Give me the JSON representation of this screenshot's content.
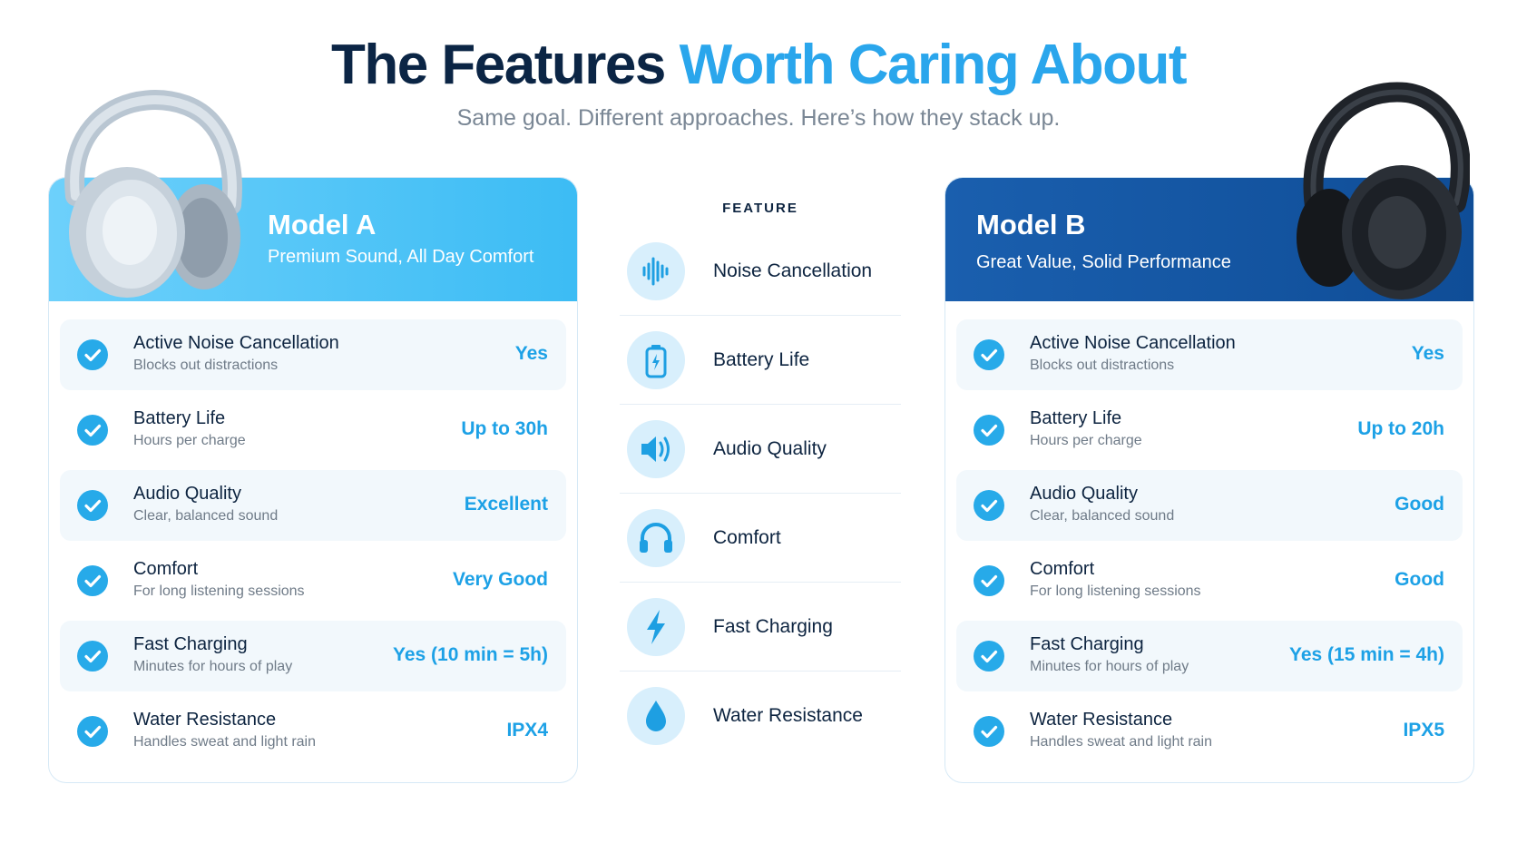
{
  "header": {
    "title_main": "The Features ",
    "title_accent": "Worth Caring About",
    "subtitle": "Same goal. Different approaches. Here’s how they stack up."
  },
  "colors": {
    "accent": "#2aa6ec",
    "model_a_header": "#4cc3f7",
    "model_b_header": "#135aa6",
    "value_text": "#1da1e6",
    "title_dark": "#0b2545"
  },
  "model_a": {
    "name": "Model A",
    "tagline": "Premium Sound, All Day Comfort",
    "rows": [
      {
        "title": "Active Noise Cancellation",
        "sub": "Blocks out distractions",
        "value": "Yes"
      },
      {
        "title": "Battery Life",
        "sub": "Hours per charge",
        "value": "Up to 30h"
      },
      {
        "title": "Audio Quality",
        "sub": "Clear, balanced sound",
        "value": "Excellent"
      },
      {
        "title": "Comfort",
        "sub": "For long listening sessions",
        "value": "Very Good"
      },
      {
        "title": "Fast Charging",
        "sub": "Minutes for hours of play",
        "value": "Yes (10 min = 5h)"
      },
      {
        "title": "Water Resistance",
        "sub": "Handles sweat and light rain",
        "value": "IPX4"
      }
    ]
  },
  "model_b": {
    "name": "Model B",
    "tagline": "Great Value, Solid Performance",
    "rows": [
      {
        "title": "Active Noise Cancellation",
        "sub": "Blocks out distractions",
        "value": "Yes"
      },
      {
        "title": "Battery Life",
        "sub": "Hours per charge",
        "value": "Up to 20h"
      },
      {
        "title": "Audio Quality",
        "sub": "Clear, balanced sound",
        "value": "Good"
      },
      {
        "title": "Comfort",
        "sub": "For long listening sessions",
        "value": "Good"
      },
      {
        "title": "Fast Charging",
        "sub": "Minutes for hours of play",
        "value": "Yes (15 min = 4h)"
      },
      {
        "title": "Water Resistance",
        "sub": "Handles sweat and light rain",
        "value": "IPX5"
      }
    ]
  },
  "features": {
    "heading": "FEATURE",
    "items": [
      {
        "label": "Noise Cancellation",
        "icon": "sound-wave-icon"
      },
      {
        "label": "Battery Life",
        "icon": "battery-icon"
      },
      {
        "label": "Audio Quality",
        "icon": "speaker-icon"
      },
      {
        "label": "Comfort",
        "icon": "headphones-icon"
      },
      {
        "label": "Fast Charging",
        "icon": "lightning-icon"
      },
      {
        "label": "Water Resistance",
        "icon": "water-drop-icon"
      }
    ]
  }
}
